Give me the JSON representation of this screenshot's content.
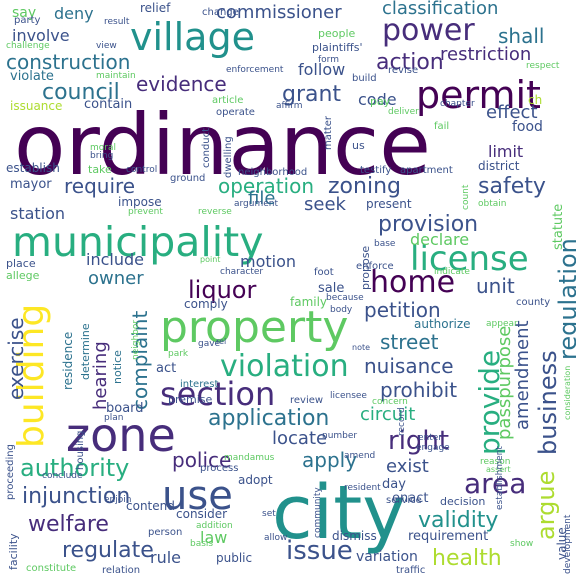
{
  "words": {
    "ordinance": "ordinance",
    "city": "city",
    "municipality": "municipality",
    "property": "property",
    "zone": "zone",
    "village": "village",
    "permit": "permit",
    "use": "use",
    "building": "building",
    "license": "license",
    "section": "section",
    "power": "power",
    "home": "home",
    "violation": "violation",
    "business": "business",
    "area": "area",
    "provide": "provide",
    "regulation": "regulation",
    "authority": "authority",
    "validity": "validity",
    "health": "health",
    "right": "right",
    "argue": "argue",
    "issue": "issue",
    "liquor": "liquor",
    "application": "application",
    "regulate": "regulate",
    "welfare": "welfare",
    "injunction": "injunction",
    "provision": "provision",
    "council": "council",
    "evidence": "evidence",
    "action": "action",
    "grant": "grant",
    "zoning": "zoning",
    "safety": "safety",
    "require": "require",
    "operation": "operation",
    "construction": "construction",
    "commissioner": "commissioner",
    "classification": "classification",
    "restriction": "restriction",
    "shall": "shall",
    "petition": "petition",
    "street": "street",
    "prohibit": "prohibit",
    "nuisance": "nuisance",
    "apply": "apply",
    "police": "police",
    "exist": "exist",
    "locate": "locate",
    "circuit": "circuit",
    "complaint": "complaint",
    "exercise": "exercise",
    "hearing": "hearing",
    "amendment": "amendment",
    "passpurpose": "passpurpose",
    "unit": "unit",
    "owner": "owner",
    "include": "include",
    "motion": "motion",
    "declare": "declare",
    "seek": "seek",
    "file": "file",
    "station": "station",
    "code": "code",
    "follow": "follow",
    "limit": "limit",
    "effect": "effect",
    "deny": "deny",
    "involve": "involve",
    "change": "change",
    "relief": "relief",
    "say": "say",
    "violate": "violate",
    "issuance": "issuance",
    "contain": "contain",
    "mayor": "mayor",
    "establish": "establish",
    "take": "take",
    "food": "food",
    "present": "present",
    "impose": "impose",
    "board": "board",
    "act": "act",
    "notice": "notice",
    "sale": "sale",
    "family": "family",
    "comply": "comply",
    "authorize": "authorize",
    "rule": "rule",
    "law": "law",
    "public": "public",
    "consider": "consider",
    "contend": "contend",
    "adopt": "adopt",
    "dismiss": "dismiss",
    "variation": "variation",
    "requirement": "requirement",
    "day": "day",
    "enact": "enact",
    "service": "service",
    "decision": "decision",
    "statute": "statute",
    "value": "value",
    "residence": "residence",
    "determine": "determine",
    "interest": "interest",
    "review": "review",
    "premise": "premise",
    "process": "process",
    "proceeding": "proceeding",
    "housing": "housing",
    "facility": "facility",
    "constitute": "constitute",
    "relation": "relation",
    "person": "person",
    "addition": "addition",
    "traffic": "traffic",
    "development": "development",
    "show": "show",
    "party": "party",
    "result": "result",
    "challenge": "challenge",
    "view": "view",
    "plaintiffs": "plaintiffs'",
    "maintain": "maintain",
    "people": "people",
    "form": "form",
    "enforcement": "enforcement",
    "revise": "revise",
    "deliver": "deliver",
    "respect": "respect",
    "build": "build",
    "pay": "pay",
    "ch": "ch",
    "chapter": "chapter",
    "article": "article",
    "affirm": "affirm",
    "operate": "operate",
    "conduct": "conduct",
    "moral": "moral",
    "bring": "bring",
    "control": "control",
    "dwelling": "dwelling",
    "neighborhood": "neighborhood",
    "matter": "matter",
    "us": "us",
    "fail": "fail",
    "testify": "testify",
    "apartment": "apartment",
    "district": "district",
    "ground": "ground",
    "obtain": "obtain",
    "count": "count",
    "argument": "argument",
    "prevent": "prevent",
    "reverse": "reverse",
    "propose": "propose",
    "base": "base",
    "point": "point",
    "place": "place",
    "allege": "allege",
    "character": "character",
    "foot": "foot",
    "enforce": "enforce",
    "indicate": "indicate",
    "county": "county",
    "because": "because",
    "body": "body",
    "appear": "appear",
    "note": "note",
    "gave": "gave",
    "park": "park",
    "neighbor": "neighbor",
    "concern": "concern",
    "licensee": "licensee",
    "record": "record",
    "number": "number",
    "enter": "enter",
    "engage": "engage",
    "reason": "reason",
    "assert": "assert",
    "amend": "amend",
    "resident": "resident",
    "establishment": "establishment",
    "consideration": "consideration",
    "mandamus": "mandamus",
    "plan": "plan",
    "conclude": "conclude",
    "enjoin": "enjoin",
    "set": "set",
    "community": "community",
    "allow": "allow",
    "basis": "basis",
    "rel": "rel"
  }
}
